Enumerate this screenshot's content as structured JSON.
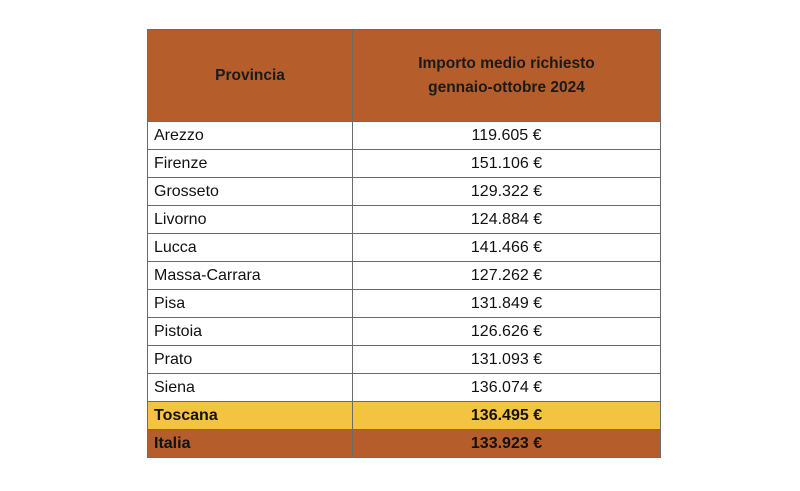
{
  "colors": {
    "header": "#B65E2B",
    "toscana": "#F4C342",
    "italia": "#B65E2B",
    "border": "#6B6B6B"
  },
  "chart_data": {
    "type": "table",
    "columns": [
      "Provincia",
      "Importo medio richiesto gennaio-ottobre 2024"
    ],
    "header_lines": [
      "Importo medio richiesto",
      "gennaio-ottobre 2024"
    ],
    "rows": [
      {
        "provincia": "Arezzo",
        "importo": "119.605 €"
      },
      {
        "provincia": "Firenze",
        "importo": "151.106 €"
      },
      {
        "provincia": "Grosseto",
        "importo": "129.322 €"
      },
      {
        "provincia": "Livorno",
        "importo": "124.884 €"
      },
      {
        "provincia": "Lucca",
        "importo": "141.466 €"
      },
      {
        "provincia": "Massa-Carrara",
        "importo": "127.262 €"
      },
      {
        "provincia": "Pisa",
        "importo": "131.849 €"
      },
      {
        "provincia": "Pistoia",
        "importo": "126.626 €"
      },
      {
        "provincia": "Prato",
        "importo": "131.093 €"
      },
      {
        "provincia": "Siena",
        "importo": "136.074 €"
      }
    ],
    "totals": [
      {
        "provincia": "Toscana",
        "importo": "136.495 €"
      },
      {
        "provincia": "Italia",
        "importo": "133.923 €"
      }
    ]
  }
}
